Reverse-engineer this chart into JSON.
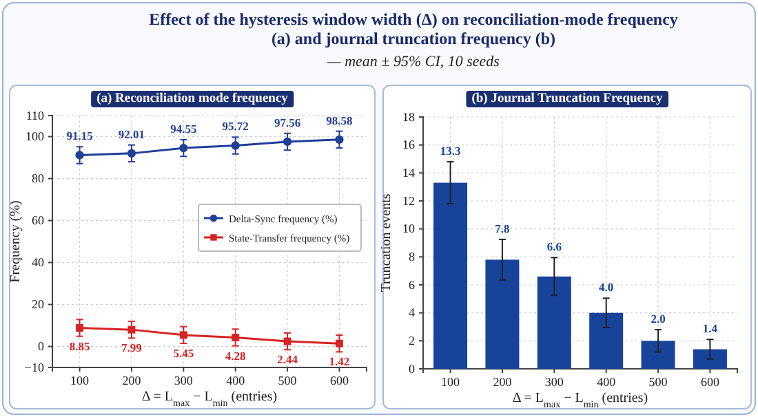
{
  "chart_data": [
    {
      "type": "line",
      "title": "(a) Reconciliation mode frequency",
      "annotations": [
        "Effect of the hysteresis window width (Δ) on reconciliation-mode frequency (a) and journal truncation frequency (b)",
        "— mean ± 95% CI, 10 seeds"
      ],
      "xlabel": "Δ = L$_{max}$ − L$_{min}$ (entries)",
      "ylabel": "Frequency (%)",
      "categories": [
        "100",
        "200",
        "300",
        "400",
        "500",
        "600"
      ],
      "series": [
        {
          "name": "Delta-Sync frequency (%)",
          "color": "#1f3f97",
          "marker": "circle",
          "values": [
            91.15,
            92.01,
            94.55,
            95.72,
            97.56,
            98.58
          ],
          "errors": [
            4,
            4,
            4,
            4,
            4,
            4
          ]
        },
        {
          "name": "State-Transfer frequency (%)",
          "color": "#d42424",
          "marker": "square",
          "values": [
            8.85,
            7.99,
            5.45,
            4.28,
            2.44,
            1.42
          ],
          "errors": [
            4,
            4,
            4,
            4,
            4,
            4
          ]
        }
      ],
      "ylim": [
        -10,
        110
      ],
      "yticks": [
        {
          "value": -10,
          "label": "−10"
        },
        0,
        20,
        40,
        60,
        80,
        100,
        110
      ],
      "grid": true,
      "legend": "right",
      "data_labels": true
    },
    {
      "type": "bar",
      "title": "(b) Journal Truncation Frequency",
      "xlabel": "Δ = L$_{max}$ − L$_{min}$ (entries)",
      "ylabel": "Truncation events",
      "categories": [
        "100",
        "200",
        "300",
        "400",
        "500",
        "600"
      ],
      "values": [
        13.3,
        7.8,
        6.6,
        4.0,
        2.0,
        1.4
      ],
      "errors": [
        1.5,
        1.45,
        1.35,
        1.05,
        0.8,
        0.7
      ],
      "value_labels": [
        "13.3",
        "7.8",
        "6.6",
        "4.0",
        "2.0",
        "1.4"
      ],
      "color": "#17439b",
      "ylim": [
        0,
        18
      ],
      "yticks": [
        0,
        2,
        4,
        6,
        8,
        10,
        12,
        14,
        16,
        18
      ],
      "grid": true
    }
  ]
}
